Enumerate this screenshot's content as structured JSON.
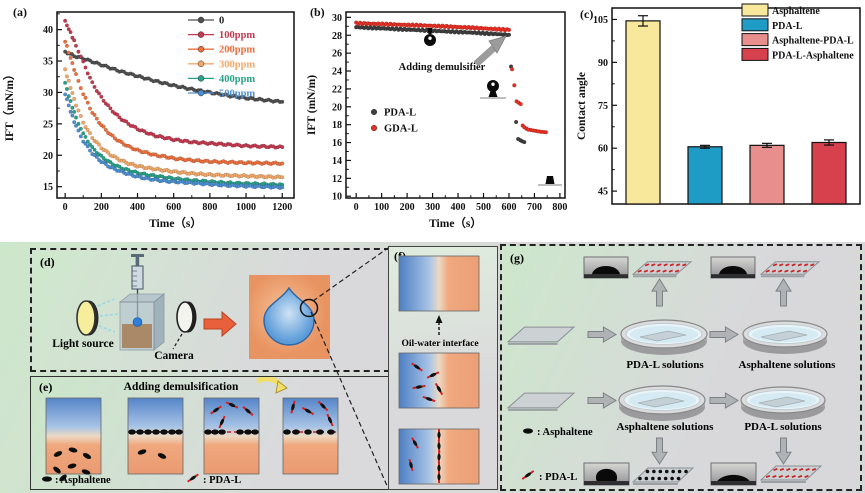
{
  "figure": {
    "type": "multi-panel scientific figure"
  },
  "panels": {
    "d": {
      "label": "(d)",
      "light_source": "Light source",
      "camera": "Camera"
    },
    "e": {
      "label": "(e)",
      "title": "Adding demulsification",
      "legend_asphaltene": ": Asphaltene",
      "legend_pdal": ": PDA-L"
    },
    "f": {
      "label": "(f)",
      "interface": "Oil-water interface"
    },
    "g": {
      "label": "(g)",
      "dish_top_left": "PDA-L solutions",
      "dish_top_right": "Asphaltene solutions",
      "dish_bottom_left": "Asphaltene solutions",
      "dish_bottom_right": "PDA-L solutions",
      "legend_asphaltene": ": Asphaltene",
      "legend_pdal": ": PDA-L"
    }
  },
  "chart_data": [
    {
      "id": "a",
      "type": "scatter",
      "panel_label": "(a)",
      "xlabel": "Time（s）",
      "ylabel": "IFT（mN/m）",
      "xlim": [
        -45,
        1265
      ],
      "ylim": [
        13.2,
        42.8
      ],
      "xticks": [
        0,
        200,
        400,
        600,
        800,
        1000,
        1200
      ],
      "xminor": 100,
      "yticks": [
        15,
        20,
        25,
        30,
        35,
        40
      ],
      "yminor": 2.5,
      "legend_position": "top-right",
      "grid": false,
      "series": [
        {
          "name": "0",
          "color": "#4f4f4f",
          "label_color": "#222222",
          "points": [
            [
              0,
              36.5
            ],
            [
              50,
              35.8
            ],
            [
              100,
              35.4
            ],
            [
              150,
              34.9
            ],
            [
              200,
              34.4
            ],
            [
              300,
              33.4
            ],
            [
              400,
              32.6
            ],
            [
              500,
              31.8
            ],
            [
              600,
              31.1
            ],
            [
              700,
              30.5
            ],
            [
              800,
              30.0
            ],
            [
              900,
              29.5
            ],
            [
              1000,
              29.1
            ],
            [
              1100,
              28.8
            ],
            [
              1200,
              28.5
            ]
          ]
        },
        {
          "name": "100ppm",
          "color": "#c23a50",
          "points": [
            [
              0,
              41.3
            ],
            [
              30,
              39.5
            ],
            [
              60,
              37.5
            ],
            [
              100,
              34.8
            ],
            [
              150,
              31.5
            ],
            [
              200,
              29.2
            ],
            [
              250,
              27.4
            ],
            [
              300,
              26.0
            ],
            [
              350,
              25.0
            ],
            [
              400,
              24.2
            ],
            [
              450,
              23.6
            ],
            [
              500,
              23.1
            ],
            [
              550,
              22.8
            ],
            [
              600,
              22.5
            ],
            [
              700,
              22.1
            ],
            [
              800,
              21.9
            ],
            [
              900,
              21.7
            ],
            [
              1000,
              21.5
            ],
            [
              1100,
              21.4
            ],
            [
              1200,
              21.3
            ]
          ]
        },
        {
          "name": "200ppm",
          "color": "#ec6f3e",
          "points": [
            [
              0,
              38.2
            ],
            [
              30,
              35.5
            ],
            [
              60,
              32.8
            ],
            [
              100,
              29.8
            ],
            [
              150,
              26.8
            ],
            [
              200,
              24.8
            ],
            [
              250,
              23.3
            ],
            [
              300,
              22.2
            ],
            [
              350,
              21.4
            ],
            [
              400,
              20.8
            ],
            [
              450,
              20.4
            ],
            [
              500,
              20.0
            ],
            [
              550,
              19.8
            ],
            [
              600,
              19.5
            ],
            [
              700,
              19.2
            ],
            [
              800,
              19.0
            ],
            [
              900,
              18.9
            ],
            [
              1000,
              18.8
            ],
            [
              1100,
              18.75
            ],
            [
              1200,
              18.7
            ]
          ]
        },
        {
          "name": "300ppm",
          "color": "#f2a869",
          "points": [
            [
              0,
              33.6
            ],
            [
              30,
              30.8
            ],
            [
              60,
              28.0
            ],
            [
              100,
              25.2
            ],
            [
              150,
              22.8
            ],
            [
              200,
              21.2
            ],
            [
              250,
              20.1
            ],
            [
              300,
              19.3
            ],
            [
              350,
              18.7
            ],
            [
              400,
              18.3
            ],
            [
              450,
              18.0
            ],
            [
              500,
              17.8
            ],
            [
              550,
              17.6
            ],
            [
              600,
              17.4
            ],
            [
              700,
              17.1
            ],
            [
              800,
              16.9
            ],
            [
              900,
              16.8
            ],
            [
              1000,
              16.7
            ],
            [
              1100,
              16.6
            ],
            [
              1200,
              16.5
            ]
          ]
        },
        {
          "name": "400ppm",
          "color": "#2aa188",
          "points": [
            [
              0,
              31.5
            ],
            [
              30,
              28.5
            ],
            [
              60,
              26.0
            ],
            [
              100,
              23.4
            ],
            [
              150,
              21.2
            ],
            [
              200,
              19.8
            ],
            [
              250,
              18.8
            ],
            [
              300,
              18.1
            ],
            [
              350,
              17.6
            ],
            [
              400,
              17.2
            ],
            [
              450,
              16.9
            ],
            [
              500,
              16.7
            ],
            [
              550,
              16.5
            ],
            [
              600,
              16.3
            ],
            [
              700,
              16.0
            ],
            [
              800,
              15.8
            ],
            [
              900,
              15.6
            ],
            [
              1000,
              15.5
            ],
            [
              1100,
              15.4
            ],
            [
              1200,
              15.3
            ]
          ]
        },
        {
          "name": "500ppm",
          "color": "#4b8fd2",
          "points": [
            [
              0,
              29.8
            ],
            [
              30,
              27.0
            ],
            [
              60,
              24.6
            ],
            [
              100,
              22.3
            ],
            [
              150,
              20.3
            ],
            [
              200,
              19.0
            ],
            [
              250,
              18.1
            ],
            [
              300,
              17.5
            ],
            [
              350,
              17.0
            ],
            [
              400,
              16.6
            ],
            [
              450,
              16.3
            ],
            [
              500,
              16.1
            ],
            [
              550,
              15.9
            ],
            [
              600,
              15.8
            ],
            [
              700,
              15.6
            ],
            [
              800,
              15.4
            ],
            [
              900,
              15.2
            ],
            [
              1000,
              15.1
            ],
            [
              1100,
              15.0
            ],
            [
              1200,
              14.9
            ]
          ]
        }
      ]
    },
    {
      "id": "b",
      "type": "scatter",
      "panel_label": "(b)",
      "xlabel": "Time（s）",
      "ylabel": "IFT (mN/m)",
      "xlim": [
        -40,
        820
      ],
      "ylim": [
        9.8,
        30.6
      ],
      "xticks": [
        0,
        100,
        200,
        300,
        400,
        500,
        600,
        700,
        800
      ],
      "xminor": 50,
      "yticks": [
        10,
        12,
        14,
        16,
        18,
        20,
        22,
        24,
        26,
        28,
        30
      ],
      "yminor": 1,
      "annotation": "Adding demulsifier",
      "legend_position": "middle-left",
      "grid": false,
      "series": [
        {
          "name": "PDA-L",
          "color": "#3f3f3f",
          "dense_until": 600,
          "points": [
            [
              0,
              28.9
            ],
            [
              150,
              28.7
            ],
            [
              300,
              28.5
            ],
            [
              450,
              28.3
            ],
            [
              600,
              28.05
            ],
            [
              608,
              24.5
            ],
            [
              628,
              18.3
            ],
            [
              636,
              16.4
            ],
            [
              645,
              16.25
            ],
            [
              652,
              16.15
            ],
            [
              660,
              16.05
            ]
          ]
        },
        {
          "name": "GDA-L",
          "color": "#ed2f24",
          "dense_until": 600,
          "points": [
            [
              0,
              29.35
            ],
            [
              150,
              29.2
            ],
            [
              300,
              29.05
            ],
            [
              450,
              28.85
            ],
            [
              600,
              28.6
            ],
            [
              612,
              24.2
            ],
            [
              621,
              22.4
            ],
            [
              630,
              20.6
            ],
            [
              638,
              20.45
            ],
            [
              646,
              20.3
            ],
            [
              654,
              17.9
            ],
            [
              661,
              17.7
            ],
            [
              669,
              17.55
            ],
            [
              676,
              17.45
            ],
            [
              686,
              17.4
            ],
            [
              696,
              17.35
            ],
            [
              706,
              17.3
            ],
            [
              716,
              17.25
            ],
            [
              726,
              17.2
            ],
            [
              736,
              17.18
            ],
            [
              745,
              17.15
            ]
          ]
        }
      ]
    },
    {
      "id": "c",
      "type": "bar",
      "panel_label": "(c)",
      "xlabel": "",
      "ylabel": "Contact angle",
      "ylim": [
        40.5,
        109
      ],
      "yticks": [
        45,
        60,
        75,
        90,
        105
      ],
      "yminor": 7.5,
      "categories": [
        "Asphaltene",
        "PDA-L",
        "Asphaltene-PDA-L",
        "PDA-L-Asphaltene"
      ],
      "values": [
        104.5,
        60.5,
        61.0,
        62.0
      ],
      "errors": [
        1.8,
        0.5,
        0.7,
        0.9
      ],
      "colors": [
        "#f8e89c",
        "#1e9cc6",
        "#e88f8d",
        "#d7404d"
      ],
      "legend_position": "top-right",
      "grid": false
    }
  ]
}
